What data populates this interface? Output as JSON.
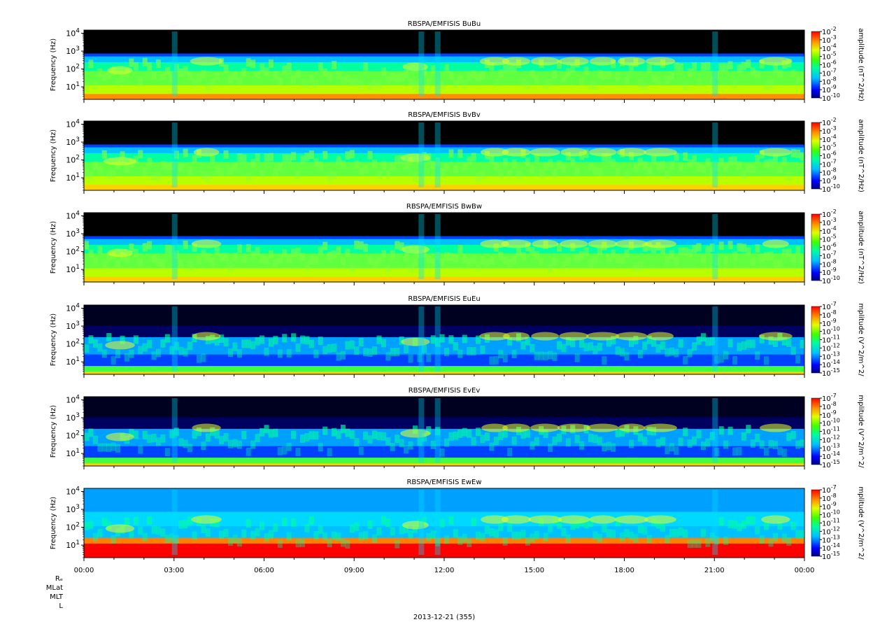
{
  "figure": {
    "date_label": "2013-12-21 (355)",
    "orbit_labels": [
      "Rₑ",
      "MLat",
      "MLT",
      "L"
    ],
    "x_ticks": [
      "00:00",
      "03:00",
      "06:00",
      "09:00",
      "12:00",
      "15:00",
      "18:00",
      "21:00",
      "00:00"
    ]
  },
  "chart_data": [
    {
      "type": "heatmap",
      "title": "RBSPA/EMFISIS  BuBu",
      "ylabel": "Frequency (Hz)",
      "ylim": [
        2,
        15000
      ],
      "yscale": "log",
      "y_ticks": [
        "10^4",
        "10^3",
        "10^2",
        "10^1"
      ],
      "xlim": [
        "00:00",
        "24:00"
      ],
      "colorbar": {
        "label": "amplitude (nT^2/Hz)",
        "scale": "log",
        "range": [
          1e-10,
          0.01
        ],
        "ticks": [
          "10^-2",
          "10^-3",
          "10^-4",
          "10^-5",
          "10^-6",
          "10^-7",
          "10^-8",
          "10^-9",
          "10^-10"
        ]
      }
    },
    {
      "type": "heatmap",
      "title": "RBSPA/EMFISIS  BvBv",
      "ylabel": "Frequency (Hz)",
      "ylim": [
        2,
        15000
      ],
      "yscale": "log",
      "y_ticks": [
        "10^4",
        "10^3",
        "10^2",
        "10^1"
      ],
      "xlim": [
        "00:00",
        "24:00"
      ],
      "colorbar": {
        "label": "amplitude (nT^2/Hz)",
        "scale": "log",
        "range": [
          1e-10,
          0.01
        ],
        "ticks": [
          "10^-2",
          "10^-3",
          "10^-4",
          "10^-5",
          "10^-6",
          "10^-7",
          "10^-8",
          "10^-9",
          "10^-10"
        ]
      }
    },
    {
      "type": "heatmap",
      "title": "RBSPA/EMFISIS  BwBw",
      "ylabel": "Frequency (Hz)",
      "ylim": [
        2,
        15000
      ],
      "yscale": "log",
      "y_ticks": [
        "10^4",
        "10^3",
        "10^2",
        "10^1"
      ],
      "xlim": [
        "00:00",
        "24:00"
      ],
      "colorbar": {
        "label": "amplitude (nT^2/Hz)",
        "scale": "log",
        "range": [
          1e-10,
          0.01
        ],
        "ticks": [
          "10^-2",
          "10^-3",
          "10^-4",
          "10^-5",
          "10^-6",
          "10^-7",
          "10^-8",
          "10^-9",
          "10^-10"
        ]
      }
    },
    {
      "type": "heatmap",
      "title": "RBSPA/EMFISIS  EuEu",
      "ylabel": "Frequency (Hz)",
      "ylim": [
        2,
        15000
      ],
      "yscale": "log",
      "y_ticks": [
        "10^4",
        "10^3",
        "10^2",
        "10^1"
      ],
      "xlim": [
        "00:00",
        "24:00"
      ],
      "colorbar": {
        "label": "mplitude (V^2/m^2/",
        "scale": "log",
        "range": [
          1e-15,
          1e-07
        ],
        "ticks": [
          "10^-7",
          "10^-8",
          "10^-9",
          "10^-10",
          "10^-11",
          "10^-12",
          "10^-13",
          "10^-14",
          "10^-15"
        ]
      }
    },
    {
      "type": "heatmap",
      "title": "RBSPA/EMFISIS  EvEv",
      "ylabel": "Frequency (Hz)",
      "ylim": [
        2,
        15000
      ],
      "yscale": "log",
      "y_ticks": [
        "10^4",
        "10^3",
        "10^2",
        "10^1"
      ],
      "xlim": [
        "00:00",
        "24:00"
      ],
      "colorbar": {
        "label": "mplitude (V^2/m^2/",
        "scale": "log",
        "range": [
          1e-15,
          1e-07
        ],
        "ticks": [
          "10^-7",
          "10^-8",
          "10^-9",
          "10^-10",
          "10^-11",
          "10^-12",
          "10^-13",
          "10^-14",
          "10^-15"
        ]
      }
    },
    {
      "type": "heatmap",
      "title": "RBSPA/EMFISIS  EwEw",
      "ylabel": "Frequency (Hz)",
      "ylim": [
        2,
        15000
      ],
      "yscale": "log",
      "y_ticks": [
        "10^4",
        "10^3",
        "10^2",
        "10^1"
      ],
      "xlim": [
        "00:00",
        "24:00"
      ],
      "colorbar": {
        "label": "mplitude (V^2/m^2/",
        "scale": "log",
        "range": [
          1e-15,
          1e-07
        ],
        "ticks": [
          "10^-7",
          "10^-8",
          "10^-9",
          "10^-10",
          "10^-11",
          "10^-12",
          "10^-13",
          "10^-14",
          "10^-15"
        ]
      }
    }
  ]
}
